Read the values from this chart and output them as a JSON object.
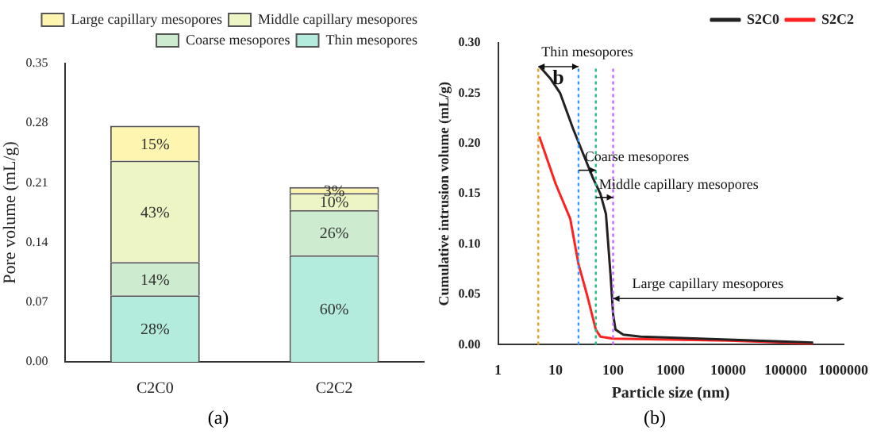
{
  "chart_data": [
    {
      "type": "bar",
      "stacked": true,
      "ylabel": "Pore volume (mL/g)",
      "categories": [
        "C2C0",
        "C2C2"
      ],
      "ylim": [
        0,
        0.35
      ],
      "yticks": [
        {
          "value": 0,
          "label": "0.00"
        },
        0.07,
        0.14,
        0.21,
        0.28,
        0.35
      ],
      "grid": false,
      "legend": "top right",
      "series": [
        {
          "name": "Thin mesopores",
          "color": "#b3ecdc",
          "values": [
            0.078,
            0.125
          ]
        },
        {
          "name": "Coarse mesopores",
          "color": "#cdebcf",
          "values": [
            0.039,
            0.053
          ]
        },
        {
          "name": "Middle capillary mesopores",
          "color": "#eef5c4",
          "values": [
            0.119,
            0.02
          ]
        },
        {
          "name": "Large capillary mesopores",
          "color": "#fdf5b0",
          "values": [
            0.041,
            0.007
          ]
        }
      ],
      "annotations": [
        "28%",
        "14%",
        "43%",
        "15%",
        "60%",
        "26%",
        "10%",
        "3%",
        "(a)"
      ]
    },
    {
      "type": "line",
      "log": "x",
      "xlabel": "Particle size (nm)",
      "ylabel": "Cumulative intrusion volume (mL/g)",
      "xlim": [
        1,
        1000000
      ],
      "xticks": [
        1,
        10,
        100,
        1000,
        10000,
        100000,
        1000000
      ],
      "ylim": [
        0,
        0.3
      ],
      "yticks": [
        {
          "value": 0,
          "label": "0.00"
        },
        {
          "value": 0.05,
          "label": "0.05"
        },
        {
          "value": 0.1,
          "label": "0.10"
        },
        {
          "value": 0.15,
          "label": "0.15"
        },
        {
          "value": 0.2,
          "label": "0.20"
        },
        {
          "value": 0.25,
          "label": "0.25"
        },
        {
          "value": 0.3,
          "label": "0.30"
        }
      ],
      "grid": false,
      "legend": "top right",
      "marker": "none",
      "line_style": "solid",
      "series": [
        {
          "name": "S2C0",
          "color": "#222222",
          "x": [
            5.2,
            8,
            12,
            20,
            30,
            45,
            60,
            75,
            90,
            100,
            110,
            150,
            300,
            1000,
            10000,
            100000,
            300000
          ],
          "values": [
            0.277,
            0.265,
            0.25,
            0.215,
            0.19,
            0.165,
            0.15,
            0.13,
            0.07,
            0.03,
            0.015,
            0.01,
            0.008,
            0.007,
            0.005,
            0.003,
            0.002
          ]
        },
        {
          "name": "S2C2",
          "color": "#ff2020",
          "x": [
            5.2,
            10,
            18,
            25,
            35,
            50,
            60,
            100,
            1000,
            10000,
            100000,
            300000
          ],
          "values": [
            0.207,
            0.16,
            0.125,
            0.08,
            0.05,
            0.015,
            0.008,
            0.006,
            0.005,
            0.004,
            0.002,
            0.001
          ]
        }
      ],
      "ref_lines": [
        {
          "axis": "x",
          "value": 5,
          "color": "#e8a020",
          "line_style": "dotted"
        },
        {
          "axis": "x",
          "value": 25,
          "color": "#3399ff",
          "line_style": "dotted"
        },
        {
          "axis": "x",
          "value": 50,
          "color": "#20c080",
          "line_style": "dotted"
        },
        {
          "axis": "x",
          "value": 100,
          "color": "#cc66ff",
          "line_style": "dotted"
        }
      ],
      "annotations": [
        "Thin mesopores",
        {
          "text": "Coarse mesopores",
          "x": 32,
          "y": 0.186
        },
        {
          "text": "Middle capillary mesopores",
          "x": 57,
          "y": 0.159
        },
        "Large capillary mesopores",
        "b",
        "(b)"
      ]
    }
  ]
}
